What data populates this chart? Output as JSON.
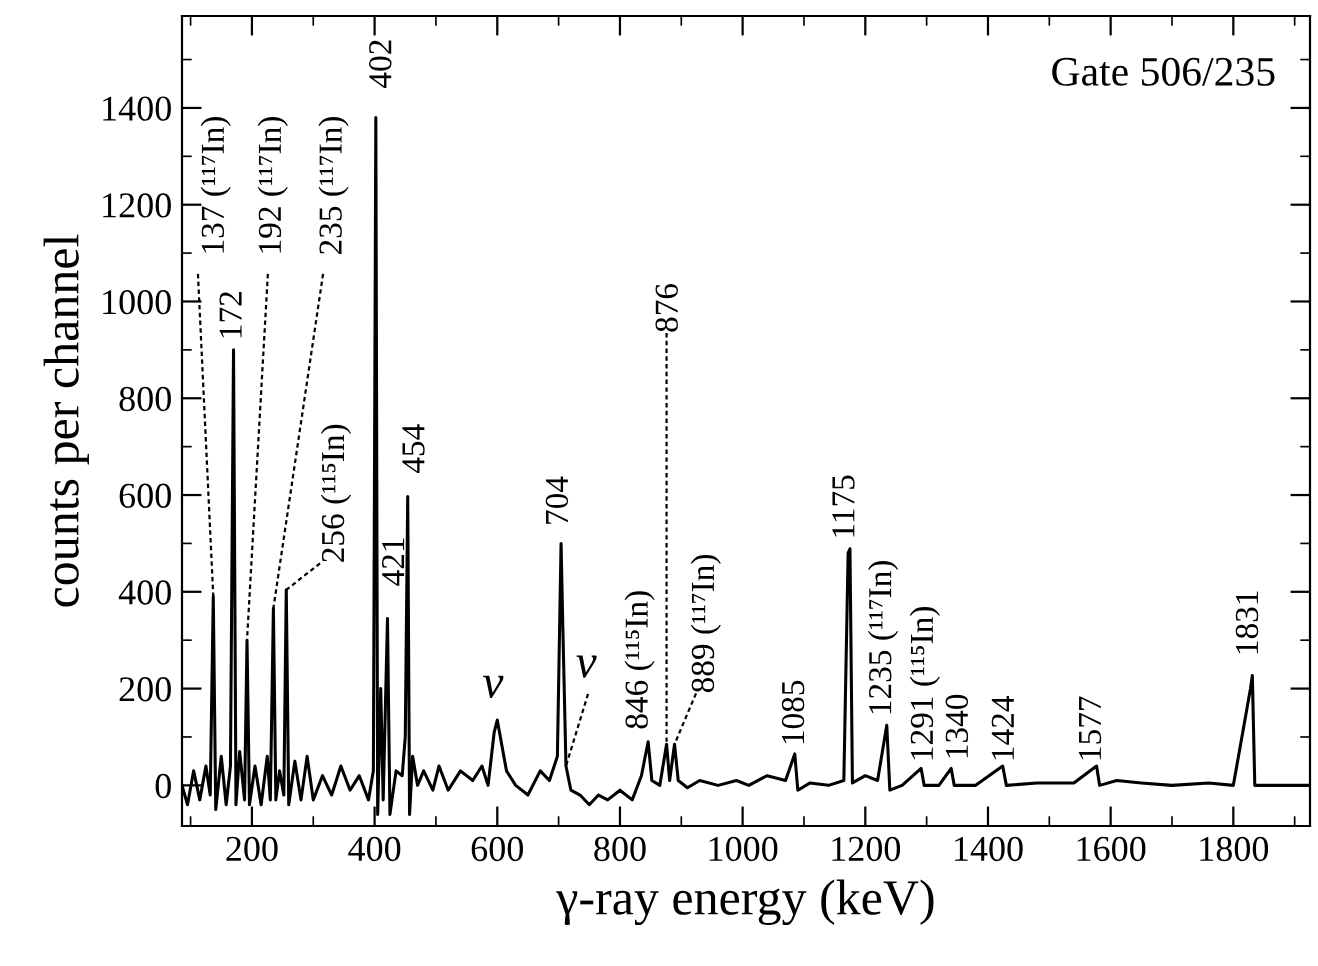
{
  "chart_data": {
    "type": "line",
    "xlabel": "γ-ray energy (keV)",
    "ylabel": "counts per channel",
    "xlim": [
      86,
      1925
    ],
    "ylim": [
      -84,
      1590
    ],
    "xticks": [
      {
        "value": 100,
        "label": null
      },
      200,
      {
        "value": 300,
        "label": null
      },
      400,
      {
        "value": 500,
        "label": null
      },
      600,
      {
        "value": 700,
        "label": null
      },
      800,
      {
        "value": 900,
        "label": null
      },
      1000,
      {
        "value": 1100,
        "label": null
      },
      1200,
      {
        "value": 1300,
        "label": null
      },
      1400,
      {
        "value": 1500,
        "label": null
      },
      1600,
      {
        "value": 1700,
        "label": null
      },
      1800,
      {
        "value": 1900,
        "label": null
      }
    ],
    "yticks": [
      0,
      {
        "value": 100,
        "label": null
      },
      200,
      {
        "value": 300,
        "label": null
      },
      400,
      {
        "value": 500,
        "label": null
      },
      600,
      {
        "value": 700,
        "label": null
      },
      800,
      {
        "value": 900,
        "label": null
      },
      1000,
      {
        "value": 1100,
        "label": null
      },
      1200,
      {
        "value": 1300,
        "label": null
      },
      1400,
      {
        "value": 1500,
        "label": null
      }
    ],
    "grid": false,
    "legend": false,
    "marker": "none",
    "line_style": "solid",
    "series": [
      {
        "color": "#000000",
        "x": [
          86,
          95,
          105,
          115,
          125,
          132,
          137,
          141,
          150,
          158,
          165,
          170,
          174,
          180,
          188,
          192,
          196,
          205,
          215,
          225,
          230,
          235,
          239,
          245,
          252,
          256,
          260,
          270,
          280,
          290,
          300,
          315,
          330,
          345,
          360,
          375,
          390,
          398,
          402,
          405,
          410,
          414,
          421,
          425,
          435,
          445,
          450,
          454,
          457,
          462,
          470,
          480,
          495,
          505,
          520,
          540,
          560,
          575,
          585,
          595,
          600,
          605,
          615,
          630,
          650,
          670,
          685,
          698,
          704,
          707,
          712,
          720,
          735,
          750,
          765,
          780,
          800,
          820,
          835,
          846,
          852,
          865,
          876,
          881,
          889,
          895,
          910,
          930,
          960,
          990,
          1010,
          1040,
          1070,
          1085,
          1090,
          1110,
          1140,
          1165,
          1172,
          1175,
          1179,
          1200,
          1220,
          1235,
          1240,
          1260,
          1291,
          1296,
          1320,
          1340,
          1345,
          1380,
          1424,
          1430,
          1480,
          1540,
          1577,
          1582,
          1610,
          1650,
          1700,
          1760,
          1800,
          1828,
          1831,
          1835,
          1880,
          1925
        ],
        "values": [
          0,
          -40,
          30,
          -30,
          40,
          -20,
          390,
          -50,
          60,
          -40,
          40,
          900,
          -40,
          70,
          -30,
          300,
          -40,
          40,
          -40,
          60,
          -30,
          366,
          -30,
          30,
          -20,
          404,
          -40,
          50,
          -30,
          60,
          -30,
          20,
          -20,
          40,
          -10,
          20,
          -30,
          30,
          1380,
          -60,
          200,
          -30,
          345,
          -60,
          30,
          20,
          100,
          597,
          -60,
          60,
          0,
          30,
          -10,
          40,
          -10,
          30,
          10,
          40,
          0,
          110,
          135,
          100,
          30,
          0,
          -20,
          30,
          10,
          60,
          500,
          320,
          40,
          -10,
          -20,
          -40,
          -20,
          -30,
          -10,
          -30,
          20,
          90,
          10,
          0,
          85,
          10,
          85,
          10,
          -5,
          10,
          0,
          10,
          0,
          20,
          10,
          65,
          -10,
          5,
          0,
          10,
          480,
          489,
          5,
          20,
          10,
          124,
          -10,
          0,
          35,
          0,
          0,
          35,
          0,
          0,
          40,
          0,
          5,
          5,
          40,
          0,
          10,
          5,
          0,
          5,
          0,
          200,
          227,
          0,
          0,
          0
        ]
      }
    ],
    "annotations": [
      {
        "text": "137 (¹¹⁷In)",
        "x": 137,
        "y": 390
      },
      {
        "text": "172",
        "x": 172,
        "y": 900
      },
      {
        "text": "192 (¹¹⁷In)",
        "x": 192,
        "y": 300
      },
      {
        "text": "235 (¹¹⁷In)",
        "x": 235,
        "y": 366
      },
      {
        "text": "256 (¹¹⁵In)",
        "x": 256,
        "y": 404
      },
      {
        "text": "402",
        "x": 402,
        "y": 1380
      },
      {
        "text": "421",
        "x": 421,
        "y": 345
      },
      {
        "text": "454",
        "x": 454,
        "y": 597
      },
      {
        "text": "ν",
        "x": 600,
        "y": 135
      },
      {
        "text": "ν",
        "x": 712,
        "y": 40
      },
      {
        "text": "704",
        "x": 704,
        "y": 500
      },
      {
        "text": "846 (¹¹⁵In)",
        "x": 846,
        "y": 90
      },
      {
        "text": "876",
        "x": 876,
        "y": 85
      },
      {
        "text": "889 (¹¹⁷In)",
        "x": 889,
        "y": 85
      },
      {
        "text": "1085",
        "x": 1085,
        "y": 65
      },
      {
        "text": "1175",
        "x": 1175,
        "y": 489
      },
      {
        "text": "1235 (¹¹⁷In)",
        "x": 1235,
        "y": 124
      },
      {
        "text": "1291 (¹¹⁵In)",
        "x": 1291,
        "y": 35
      },
      {
        "text": "1340",
        "x": 1340,
        "y": 35
      },
      {
        "text": "1424",
        "x": 1424,
        "y": 40
      },
      {
        "text": "1577",
        "x": 1577,
        "y": 40
      },
      {
        "text": "1831",
        "x": 1831,
        "y": 227
      },
      "Gate 506/235"
    ]
  }
}
